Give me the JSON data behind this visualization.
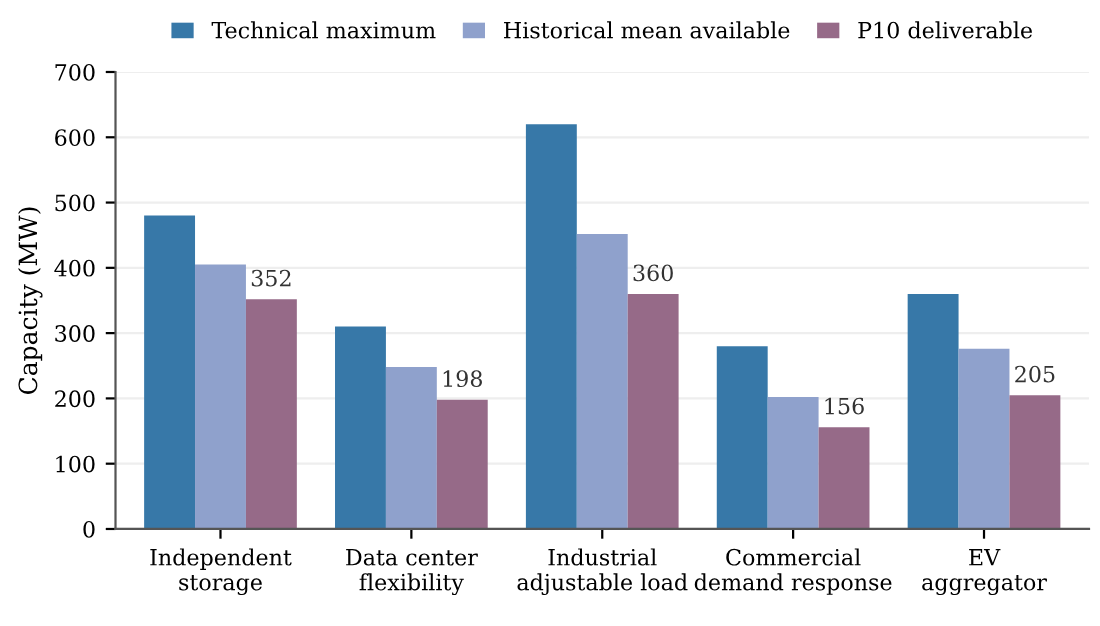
{
  "chart_data": {
    "type": "bar",
    "ylabel": "Capacity (MW)",
    "categories": [
      "Independent\nstorage",
      "Data center\nflexibility",
      "Industrial\nadjustable load",
      "Commercial\ndemand response",
      "EV\naggregator"
    ],
    "series": [
      {
        "name": "Technical maximum",
        "color": "#3778a8",
        "values": [
          480,
          310,
          620,
          280,
          360
        ]
      },
      {
        "name": "Historical mean available",
        "color": "#8fa1cc",
        "values": [
          405,
          248,
          452,
          202,
          276
        ]
      },
      {
        "name": "P10 deliverable",
        "color": "#966a88",
        "values": [
          352,
          198,
          360,
          156,
          205
        ],
        "value_labels": [
          "352",
          "198",
          "360",
          "156",
          "205"
        ]
      }
    ],
    "ylim": [
      0,
      700
    ],
    "yticks": [
      0,
      100,
      200,
      300,
      400,
      500,
      600,
      700
    ],
    "grid": "y",
    "legend": "top"
  }
}
